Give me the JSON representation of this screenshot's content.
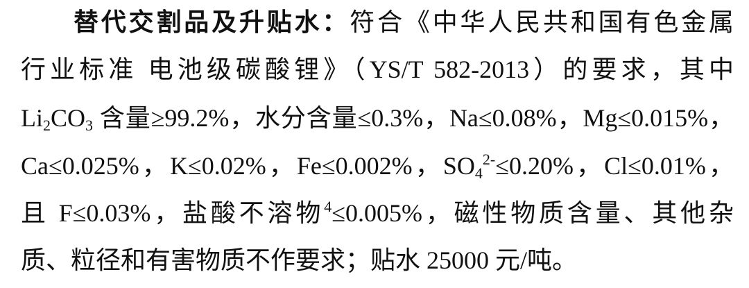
{
  "paragraph": {
    "heading": "替代交割品及升贴水：",
    "line1_rest": "符合《中华人民共和国有色金属",
    "line2": "行业标准 电池级碳酸锂》（YS/T 582-2013）的要求，其中",
    "line3": {
      "a": "Li",
      "sub1": "2",
      "b": "CO",
      "sub2": "3",
      "c": "含量≥99.2%，水分含量≤0.3%，Na≤0.08%，Mg≤0.015%，"
    },
    "line4": {
      "a": "Ca≤0.025%，K≤0.02%，Fe≤0.002%，SO",
      "sub": "4",
      "sup": "2-",
      "b": "≤0.20%，Cl≤0.01%，"
    },
    "line5": {
      "a": "且 F≤0.03%，盐酸不溶物",
      "sup": "4",
      "b": "≤0.005%，磁性物质含量、其他杂"
    },
    "line6": "质、粒径和有害物质不作要求；贴水 25000 元/吨。"
  }
}
